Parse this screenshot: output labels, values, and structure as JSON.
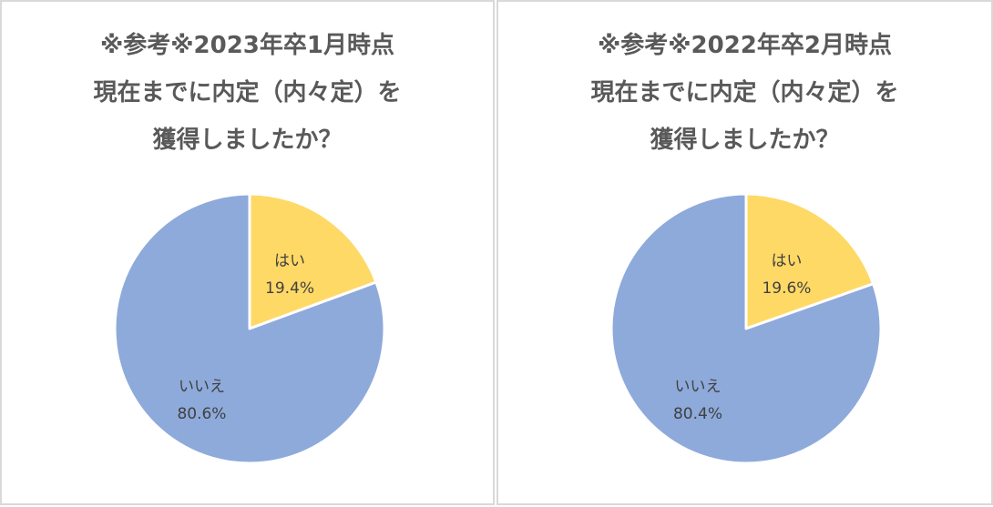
{
  "chart_data": [
    {
      "type": "pie",
      "title_lines": [
        "※参考※2023年卒1月時点",
        "現在までに内定（内々定）を",
        "獲得しましたか？"
      ],
      "slices": [
        {
          "name": "はい",
          "value": 19.4,
          "pct_label": "19.4%",
          "color": "#ffd966"
        },
        {
          "name": "いいえ",
          "value": 80.6,
          "pct_label": "80.6%",
          "color": "#8eaadb"
        }
      ]
    },
    {
      "type": "pie",
      "title_lines": [
        "※参考※2022年卒2月時点",
        "現在までに内定（内々定）を",
        "獲得しましたか？"
      ],
      "slices": [
        {
          "name": "はい",
          "value": 19.6,
          "pct_label": "19.6%",
          "color": "#ffd966"
        },
        {
          "name": "いいえ",
          "value": 80.4,
          "pct_label": "80.4%",
          "color": "#8eaadb"
        }
      ]
    }
  ]
}
